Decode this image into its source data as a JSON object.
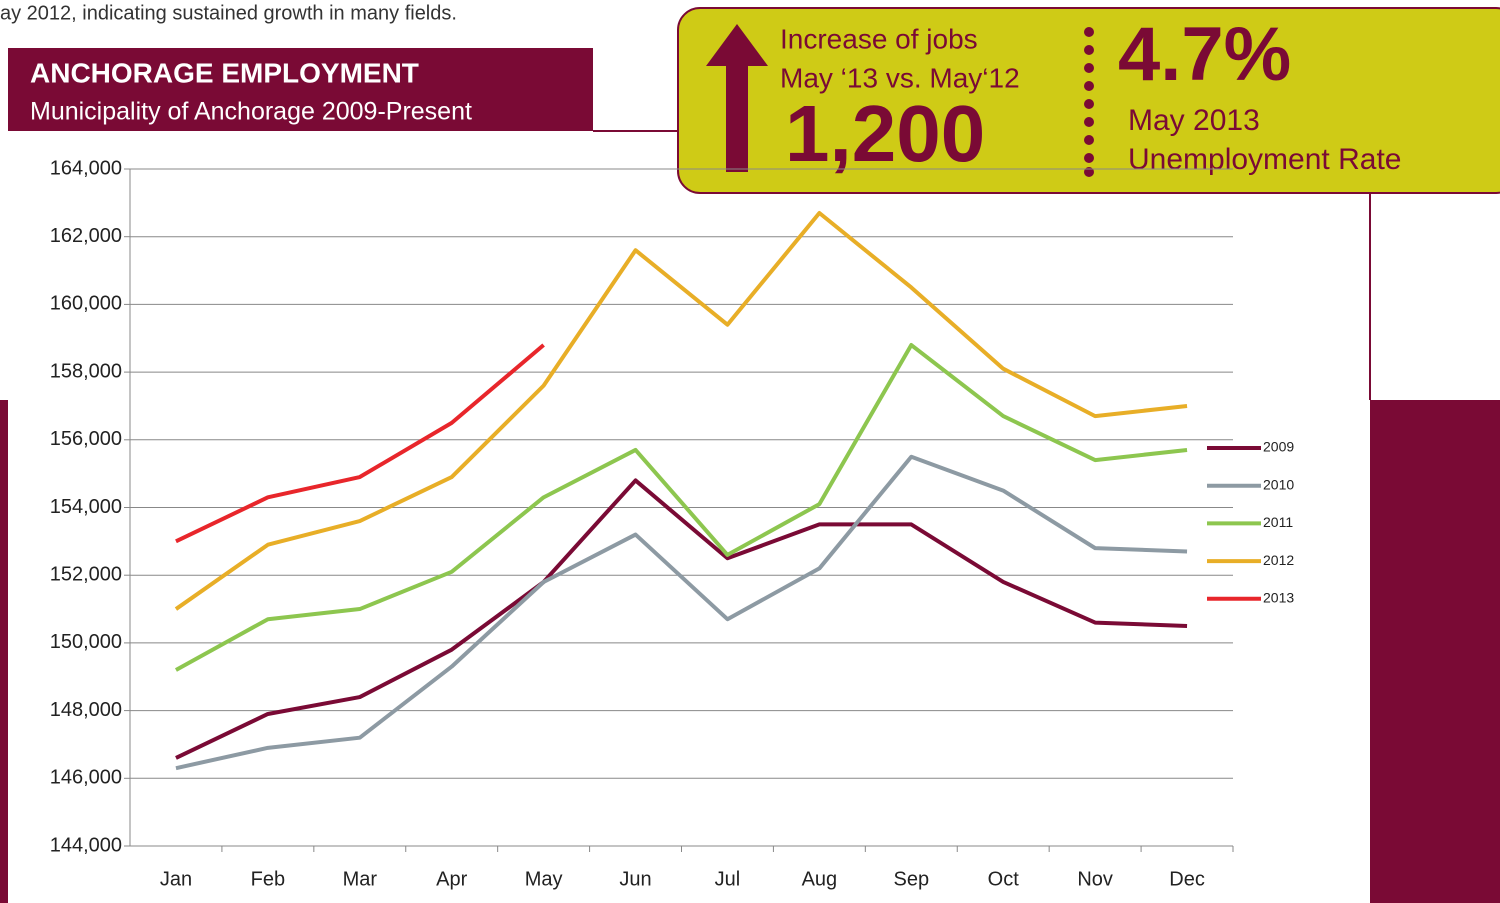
{
  "intro": "ay 2012, indicating sustained growth in many fields.",
  "header": {
    "title": "ANCHORAGE EMPLOYMENT",
    "subtitle": "Municipality of Anchorage 2009-Present"
  },
  "callout": {
    "jobs_label_1": "Increase of jobs",
    "jobs_label_2": "May ‘13 vs. May‘12",
    "jobs_value": "1,200",
    "rate_value": "4.7%",
    "rate_label_1": "May 2013",
    "rate_label_2": "Unemployment Rate"
  },
  "chart_data": {
    "type": "line",
    "categories": [
      "Jan",
      "Feb",
      "Mar",
      "Apr",
      "May",
      "Jun",
      "Jul",
      "Aug",
      "Sep",
      "Oct",
      "Nov",
      "Dec"
    ],
    "series": [
      {
        "name": "2009",
        "color": "#7a0a35",
        "values": [
          146600,
          147900,
          148400,
          149800,
          151800,
          154800,
          152500,
          153500,
          153500,
          151800,
          150600,
          150500
        ]
      },
      {
        "name": "2010",
        "color": "#8d9aa3",
        "values": [
          146300,
          146900,
          147200,
          149300,
          151800,
          153200,
          150700,
          152200,
          155500,
          154500,
          152800,
          152700
        ]
      },
      {
        "name": "2011",
        "color": "#8dc64f",
        "values": [
          149200,
          150700,
          151000,
          152100,
          154300,
          155700,
          152600,
          154100,
          158800,
          156700,
          155400,
          155700
        ]
      },
      {
        "name": "2012",
        "color": "#e8ae27",
        "values": [
          151000,
          152900,
          153600,
          154900,
          157600,
          161600,
          159400,
          162700,
          160500,
          158100,
          156700,
          157000
        ]
      },
      {
        "name": "2013",
        "color": "#e8262b",
        "values": [
          153000,
          154300,
          154900,
          156500,
          158800,
          null,
          null,
          null,
          null,
          null,
          null,
          null
        ]
      }
    ],
    "ylim": [
      144000,
      164000
    ],
    "yticks": [
      {
        "value": 144000,
        "label": "144,000"
      },
      {
        "value": 146000,
        "label": "146,000"
      },
      {
        "value": 148000,
        "label": "148,000"
      },
      {
        "value": 150000,
        "label": "150,000"
      },
      {
        "value": 152000,
        "label": "152,000"
      },
      {
        "value": 154000,
        "label": "154,000"
      },
      {
        "value": 156000,
        "label": "156,000"
      },
      {
        "value": 158000,
        "label": "158,000"
      },
      {
        "value": 160000,
        "label": "160,000"
      },
      {
        "value": 162000,
        "label": "162,000"
      },
      {
        "value": 164000,
        "label": "164,000"
      }
    ],
    "grid": true,
    "legend": "right"
  }
}
